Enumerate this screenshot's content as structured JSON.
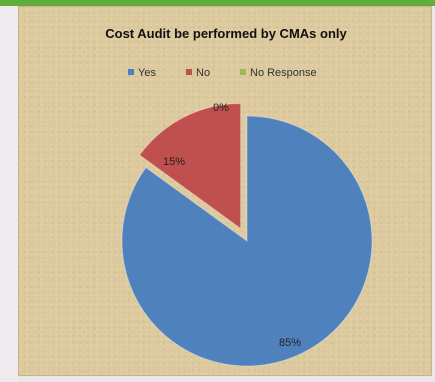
{
  "chart_data": {
    "type": "pie",
    "title": "Cost Audit be performed by CMAs only",
    "legend_position": "top",
    "slices": [
      {
        "name": "Yes",
        "value": 85,
        "label": "85%",
        "color": "#4f81bd"
      },
      {
        "name": "No",
        "value": 15,
        "label": "15%",
        "color": "#c0504d"
      },
      {
        "name": "No Response",
        "value": 0,
        "label": "0%",
        "color": "#9bbb59"
      }
    ],
    "exploded_slice": "No"
  }
}
